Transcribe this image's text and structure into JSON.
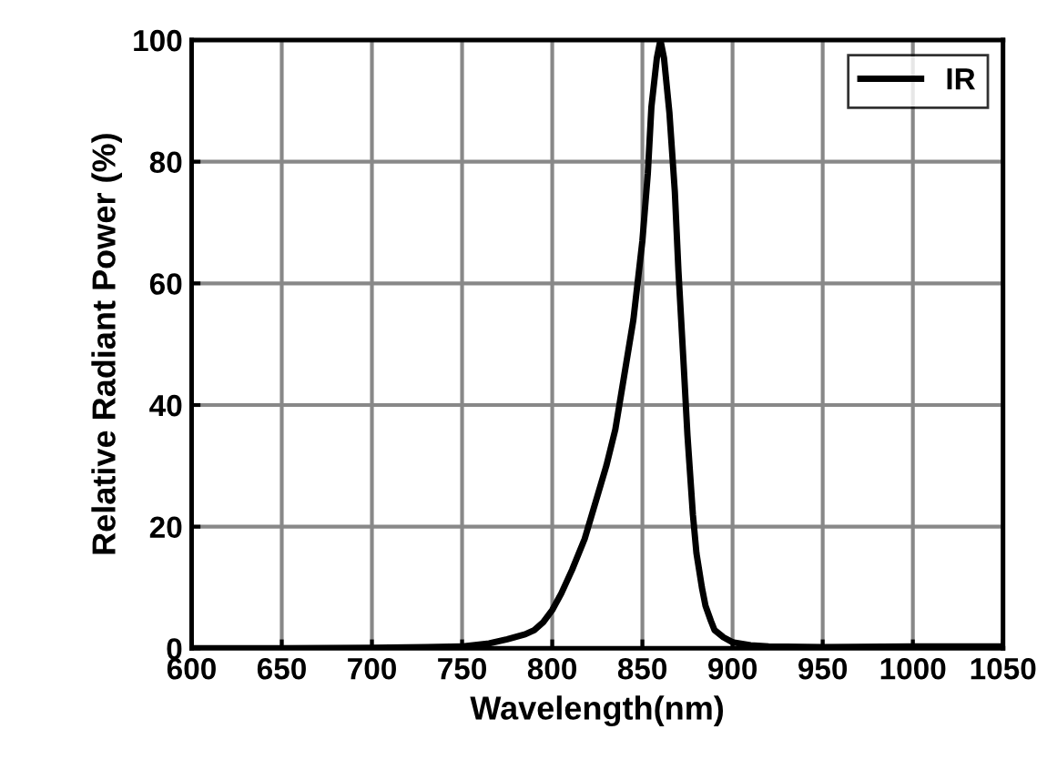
{
  "chart_data": {
    "type": "line",
    "xlabel": "Wavelength(nm)",
    "ylabel": "Relative Radiant Power (%)",
    "xlim": [
      600,
      1050
    ],
    "ylim": [
      0,
      100
    ],
    "xticks": [
      600,
      650,
      700,
      750,
      800,
      850,
      900,
      950,
      1000,
      1050
    ],
    "yticks": [
      0,
      20,
      40,
      60,
      80,
      100
    ],
    "grid": true,
    "legend": "top right",
    "line_style": "solid",
    "marker": "none",
    "series": [
      {
        "name": "IR",
        "color": "#000000",
        "x": [
          600,
          650,
          700,
          730,
          750,
          765,
          775,
          785,
          790,
          795,
          800,
          805,
          811,
          818,
          825,
          830,
          835,
          840,
          845,
          850,
          853,
          855,
          858,
          860,
          862,
          865,
          868,
          870,
          873,
          875,
          878,
          880,
          883,
          885,
          888,
          890,
          895,
          900,
          910,
          920,
          950,
          1000,
          1050
        ],
        "values": [
          0,
          0,
          0.1,
          0.2,
          0.3,
          0.8,
          1.5,
          2.3,
          3,
          4.3,
          6.3,
          9,
          12.9,
          18,
          25,
          30,
          36,
          45,
          54,
          67,
          78,
          89,
          97,
          100,
          97,
          88,
          75,
          62,
          46,
          35,
          22,
          15.6,
          10,
          7,
          4.5,
          3,
          1.8,
          1,
          0.5,
          0.3,
          0.2,
          0.3,
          0.3
        ]
      }
    ]
  }
}
